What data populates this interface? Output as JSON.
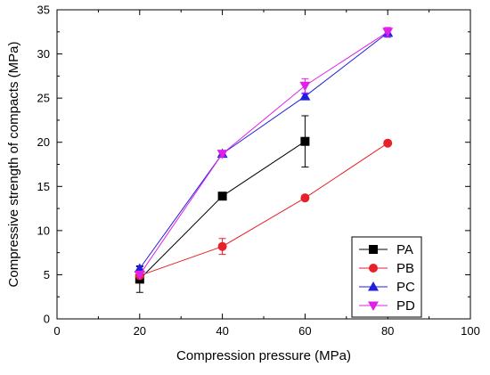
{
  "chart_data": {
    "type": "line",
    "title": "",
    "xlabel": "Compression pressure (MPa)",
    "ylabel": "Compressive strength of compacts (MPa)",
    "xlim": [
      0,
      100
    ],
    "ylim": [
      0,
      35
    ],
    "xticks": [
      0,
      20,
      40,
      60,
      80,
      100
    ],
    "yticks": [
      0,
      5,
      10,
      15,
      20,
      25,
      30,
      35
    ],
    "grid": false,
    "legend_position": "bottom-right",
    "series": [
      {
        "name": "PA",
        "color": "#000000",
        "marker": "square",
        "x": [
          20,
          40,
          60
        ],
        "y": [
          4.5,
          13.9,
          20.1
        ],
        "err": [
          1.5,
          0.2,
          2.9
        ]
      },
      {
        "name": "PB",
        "color": "#e8202a",
        "marker": "circle",
        "x": [
          20,
          40,
          60,
          80
        ],
        "y": [
          4.9,
          8.2,
          13.7,
          19.9
        ],
        "err": [
          0.2,
          0.9,
          0.2,
          0.2
        ]
      },
      {
        "name": "PC",
        "color": "#1f1fe0",
        "marker": "triangle-up",
        "x": [
          20,
          40,
          80
        ],
        "y": [
          5.7,
          18.7,
          32.4
        ],
        "err": [
          0.2,
          0.3,
          0.5
        ],
        "also": {
          "x": 60,
          "y": 25.2
        }
      },
      {
        "name": "PD",
        "color": "#e020e8",
        "marker": "triangle-down",
        "x": [
          20,
          40,
          60,
          80
        ],
        "y": [
          5.0,
          18.7,
          26.4,
          32.5
        ],
        "err": [
          0.2,
          0.3,
          0.8,
          0.5
        ]
      }
    ]
  }
}
